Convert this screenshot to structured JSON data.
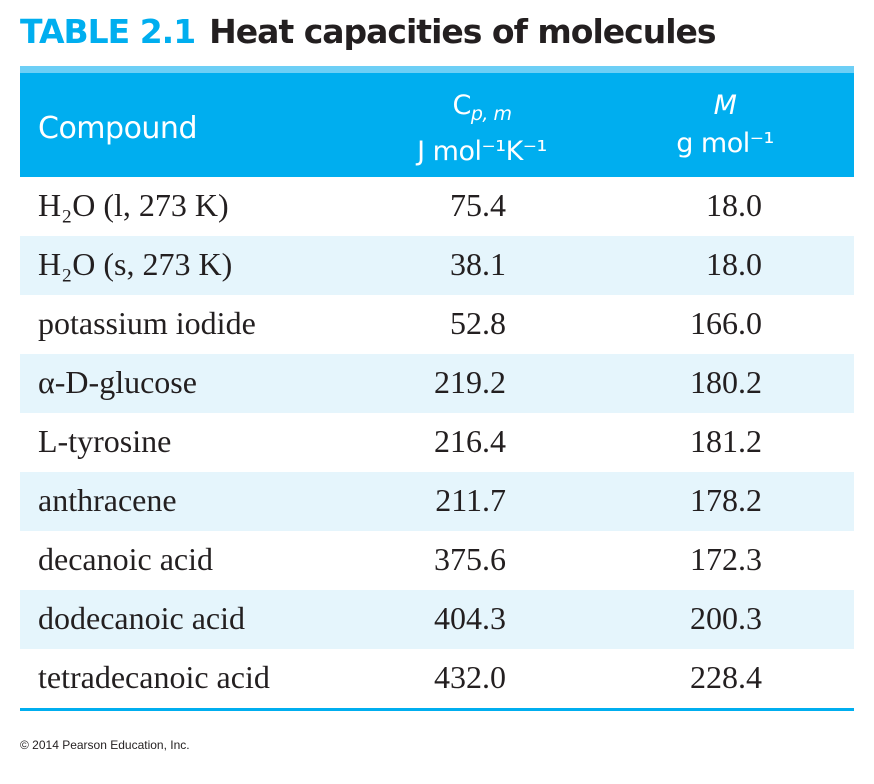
{
  "title": {
    "number": "TABLE 2.1",
    "text": "Heat capacities of molecules"
  },
  "header": {
    "compound": "Compound",
    "cp_symbol": "C",
    "cp_subscript": "p, m",
    "cp_unit": "J mol⁻¹K⁻¹",
    "m_symbol": "M",
    "m_unit": "g mol⁻¹"
  },
  "rows": [
    {
      "compound": "H₂O (l, 273 K)",
      "cp": "75.4",
      "m": "18.0"
    },
    {
      "compound": "H₂O (s, 273 K)",
      "cp": "38.1",
      "m": "18.0"
    },
    {
      "compound": "potassium iodide",
      "cp": "52.8",
      "m": "166.0"
    },
    {
      "compound": "α-D-glucose",
      "cp": "219.2",
      "m": "180.2"
    },
    {
      "compound": "L-tyrosine",
      "cp": "216.4",
      "m": "181.2"
    },
    {
      "compound": "anthracene",
      "cp": "211.7",
      "m": "178.2"
    },
    {
      "compound": "decanoic acid",
      "cp": "375.6",
      "m": "172.3"
    },
    {
      "compound": "dodecanoic acid",
      "cp": "404.3",
      "m": "200.3"
    },
    {
      "compound": "tetradecanoic acid",
      "cp": "432.0",
      "m": "228.4"
    }
  ],
  "copyright": "© 2014 Pearson Education, Inc.",
  "colors": {
    "accent": "#00aeef",
    "strip": "#6dcff6",
    "alt_row": "#e5f5fc"
  }
}
